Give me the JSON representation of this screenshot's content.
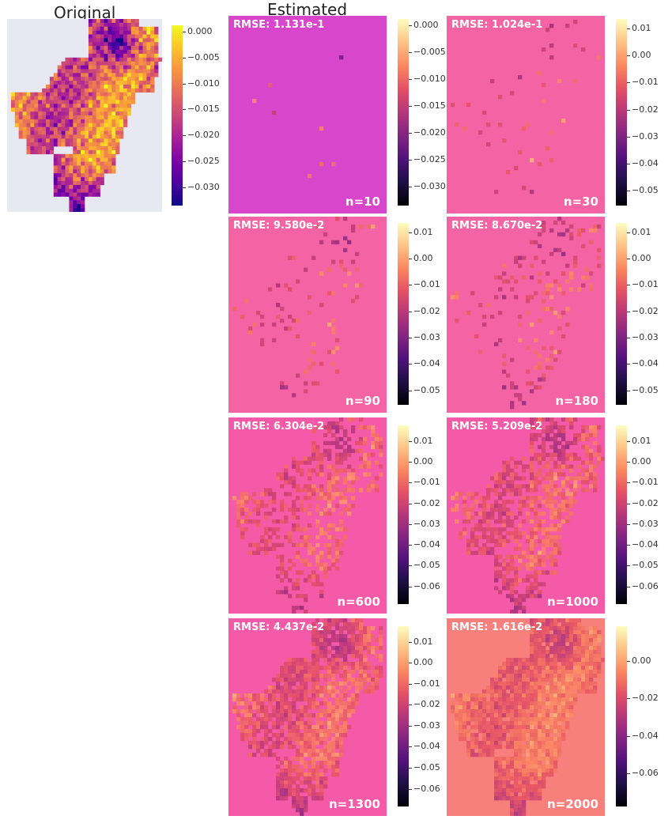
{
  "titles": {
    "original": "Original",
    "estimated": "Estimated"
  },
  "chart_data": [
    {
      "type": "heatmap",
      "panel": "original",
      "colormap": "plasma",
      "colorbar_ticks": [
        0.0,
        -0.005,
        -0.01,
        -0.015,
        -0.02,
        -0.025,
        -0.03
      ],
      "colorbar_labels": [
        "0.000",
        "−0.005",
        "−0.010",
        "−0.015",
        "−0.020",
        "−0.025",
        "−0.030"
      ],
      "vmin": -0.0335,
      "vmax": 0.0012
    },
    {
      "type": "heatmap",
      "panel": "estimated",
      "rmse": "RMSE: 1.131e-1",
      "n": "n=10",
      "colormap": "magma",
      "colorbar_ticks": [
        0.0,
        -0.005,
        -0.01,
        -0.015,
        -0.02,
        -0.025,
        -0.03
      ],
      "colorbar_labels": [
        "0.000",
        "−0.005",
        "−0.010",
        "−0.015",
        "−0.020",
        "−0.025",
        "−0.030"
      ],
      "vmin": -0.0335,
      "vmax": 0.0012
    },
    {
      "type": "heatmap",
      "panel": "estimated",
      "rmse": "RMSE: 1.024e-1",
      "n": "n=30",
      "colormap": "magma",
      "colorbar_ticks": [
        0.01,
        0.0,
        -0.01,
        -0.02,
        -0.03,
        -0.04,
        -0.05
      ],
      "colorbar_labels": [
        "0.01",
        "0.00",
        "−0.01",
        "−0.02",
        "−0.03",
        "−0.04",
        "−0.05"
      ],
      "vmin": -0.0555,
      "vmax": 0.0135
    },
    {
      "type": "heatmap",
      "panel": "estimated",
      "rmse": "RMSE: 9.580e-2",
      "n": "n=90",
      "colormap": "magma",
      "colorbar_ticks": [
        0.01,
        0.0,
        -0.01,
        -0.02,
        -0.03,
        -0.04,
        -0.05
      ],
      "colorbar_labels": [
        "0.01",
        "0.00",
        "−0.01",
        "−0.02",
        "−0.03",
        "−0.04",
        "−0.05"
      ],
      "vmin": -0.0555,
      "vmax": 0.0135
    },
    {
      "type": "heatmap",
      "panel": "estimated",
      "rmse": "RMSE: 8.670e-2",
      "n": "n=180",
      "colormap": "magma",
      "colorbar_ticks": [
        0.01,
        0.0,
        -0.01,
        -0.02,
        -0.03,
        -0.04,
        -0.05
      ],
      "colorbar_labels": [
        "0.01",
        "0.00",
        "−0.01",
        "−0.02",
        "−0.03",
        "−0.04",
        "−0.05"
      ],
      "vmin": -0.0555,
      "vmax": 0.0135
    },
    {
      "type": "heatmap",
      "panel": "estimated",
      "rmse": "RMSE: 6.304e-2",
      "n": "n=600",
      "colormap": "magma",
      "colorbar_ticks": [
        0.01,
        0.0,
        -0.01,
        -0.02,
        -0.03,
        -0.04,
        -0.05,
        -0.06
      ],
      "colorbar_labels": [
        "0.01",
        "0.00",
        "−0.01",
        "−0.02",
        "−0.03",
        "−0.04",
        "−0.05",
        "−0.06"
      ],
      "vmin": -0.0685,
      "vmax": 0.0175
    },
    {
      "type": "heatmap",
      "panel": "estimated",
      "rmse": "RMSE: 5.209e-2",
      "n": "n=1000",
      "colormap": "magma",
      "colorbar_ticks": [
        0.01,
        0.0,
        -0.01,
        -0.02,
        -0.03,
        -0.04,
        -0.05,
        -0.06
      ],
      "colorbar_labels": [
        "0.01",
        "0.00",
        "−0.01",
        "−0.02",
        "−0.03",
        "−0.04",
        "−0.05",
        "−0.06"
      ],
      "vmin": -0.0685,
      "vmax": 0.0175
    },
    {
      "type": "heatmap",
      "panel": "estimated",
      "rmse": "RMSE: 4.437e-2",
      "n": "n=1300",
      "colormap": "magma",
      "colorbar_ticks": [
        0.01,
        0.0,
        -0.01,
        -0.02,
        -0.03,
        -0.04,
        -0.05,
        -0.06
      ],
      "colorbar_labels": [
        "0.01",
        "0.00",
        "−0.01",
        "−0.02",
        "−0.03",
        "−0.04",
        "−0.05",
        "−0.06"
      ],
      "vmin": -0.0685,
      "vmax": 0.0175
    },
    {
      "type": "heatmap",
      "panel": "estimated",
      "rmse": "RMSE: 1.616e-2",
      "n": "n=2000",
      "colormap": "magma",
      "colorbar_ticks": [
        0.0,
        -0.02,
        -0.04,
        -0.06
      ],
      "colorbar_labels": [
        "0.00",
        "−0.02",
        "−0.04",
        "−0.06"
      ],
      "vmin": -0.0775,
      "vmax": 0.0185
    }
  ]
}
